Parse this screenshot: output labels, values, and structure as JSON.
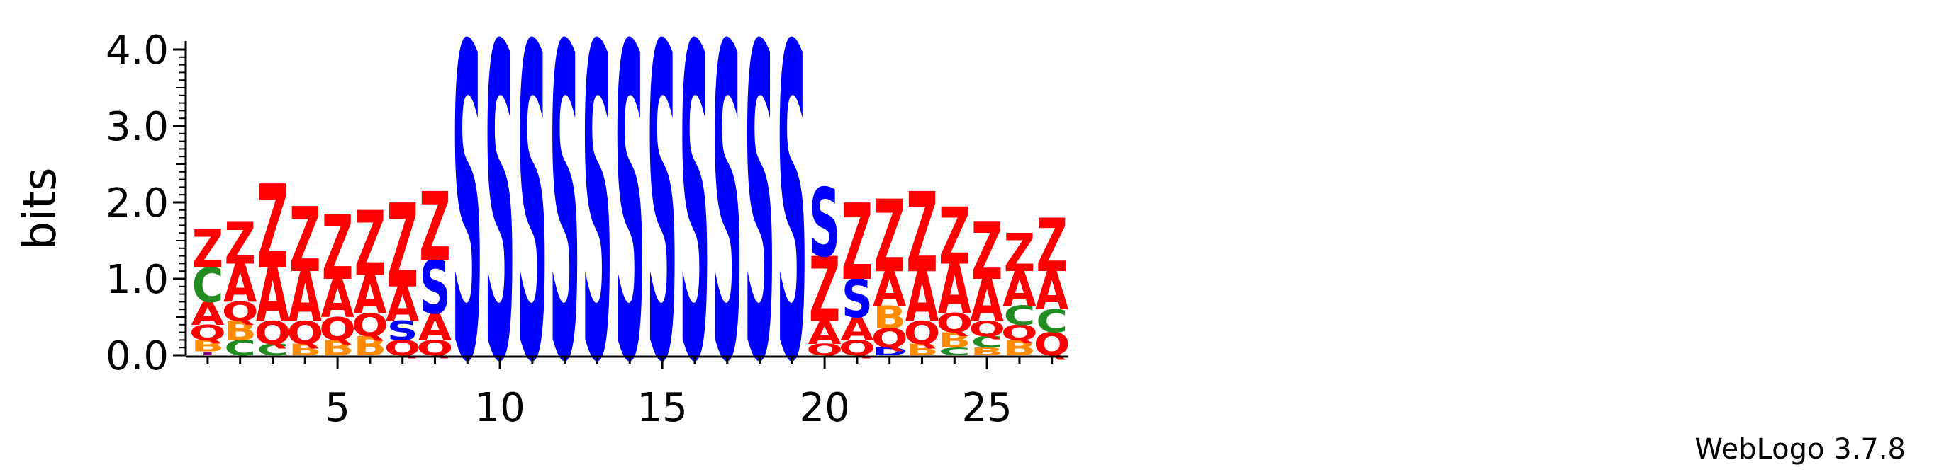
{
  "chart_data": {
    "type": "sequence-logo",
    "ylabel": "bits",
    "ylim": [
      0,
      4.0
    ],
    "y_ticks": [
      "0.0",
      "1.0",
      "2.0",
      "3.0",
      "4.0"
    ],
    "x_ticks": [
      "5",
      "10",
      "15",
      "20",
      "25"
    ],
    "x_tick_values": [
      5,
      10,
      15,
      20,
      25
    ],
    "x_range": [
      1,
      27
    ],
    "credit": "WebLogo 3.7.8",
    "colors": {
      "Z": "#ff0000",
      "A": "#ff0000",
      "Q": "#ff0000",
      "S": "#0000ff",
      "C": "#228b22",
      "B": "#ff8c00",
      "I": "#800080",
      "D": "#0000ff"
    },
    "positions": [
      {
        "pos": 1,
        "stack": [
          [
            "I",
            0.05
          ],
          [
            "B",
            0.15
          ],
          [
            "Q",
            0.2
          ],
          [
            "A",
            0.3
          ],
          [
            "C",
            0.45
          ],
          [
            "Z",
            0.5
          ]
        ]
      },
      {
        "pos": 2,
        "stack": [
          [
            "C",
            0.2
          ],
          [
            "B",
            0.25
          ],
          [
            "Q",
            0.25
          ],
          [
            "A",
            0.5
          ],
          [
            "Z",
            0.55
          ]
        ]
      },
      {
        "pos": 3,
        "stack": [
          [
            "C",
            0.15
          ],
          [
            "Q",
            0.3
          ],
          [
            "A",
            0.7
          ],
          [
            "Z",
            1.1
          ]
        ]
      },
      {
        "pos": 4,
        "stack": [
          [
            "B",
            0.15
          ],
          [
            "Q",
            0.3
          ],
          [
            "A",
            0.65
          ],
          [
            "Z",
            0.85
          ]
        ]
      },
      {
        "pos": 5,
        "stack": [
          [
            "B",
            0.2
          ],
          [
            "Q",
            0.3
          ],
          [
            "A",
            0.5
          ],
          [
            "Z",
            0.85
          ]
        ]
      },
      {
        "pos": 6,
        "stack": [
          [
            "B",
            0.25
          ],
          [
            "Q",
            0.3
          ],
          [
            "A",
            0.5
          ],
          [
            "Z",
            0.85
          ]
        ]
      },
      {
        "pos": 7,
        "stack": [
          [
            "Q",
            0.2
          ],
          [
            "S",
            0.25
          ],
          [
            "A",
            0.45
          ],
          [
            "Z",
            1.1
          ]
        ]
      },
      {
        "pos": 8,
        "stack": [
          [
            "Q",
            0.2
          ],
          [
            "A",
            0.35
          ],
          [
            "S",
            0.7
          ],
          [
            "Z",
            0.9
          ]
        ]
      },
      {
        "pos": 9,
        "stack": [
          [
            "S",
            4.1
          ]
        ]
      },
      {
        "pos": 10,
        "stack": [
          [
            "S",
            4.1
          ]
        ]
      },
      {
        "pos": 11,
        "stack": [
          [
            "S",
            4.1
          ]
        ]
      },
      {
        "pos": 12,
        "stack": [
          [
            "S",
            4.1
          ]
        ]
      },
      {
        "pos": 13,
        "stack": [
          [
            "S",
            4.1
          ]
        ]
      },
      {
        "pos": 14,
        "stack": [
          [
            "S",
            4.1
          ]
        ]
      },
      {
        "pos": 15,
        "stack": [
          [
            "S",
            4.1
          ]
        ]
      },
      {
        "pos": 16,
        "stack": [
          [
            "S",
            4.1
          ]
        ]
      },
      {
        "pos": 17,
        "stack": [
          [
            "S",
            4.1
          ]
        ]
      },
      {
        "pos": 18,
        "stack": [
          [
            "S",
            4.1
          ]
        ]
      },
      {
        "pos": 19,
        "stack": [
          [
            "S",
            4.1
          ]
        ]
      },
      {
        "pos": 20,
        "stack": [
          [
            "Q",
            0.15
          ],
          [
            "A",
            0.3
          ],
          [
            "Z",
            0.85
          ],
          [
            "S",
            0.9
          ]
        ]
      },
      {
        "pos": 21,
        "stack": [
          [
            "Q",
            0.2
          ],
          [
            "A",
            0.3
          ],
          [
            "S",
            0.5
          ],
          [
            "Z",
            1.0
          ]
        ]
      },
      {
        "pos": 22,
        "stack": [
          [
            "D",
            0.1
          ],
          [
            "Q",
            0.25
          ],
          [
            "B",
            0.3
          ],
          [
            "A",
            0.45
          ],
          [
            "Z",
            0.95
          ]
        ]
      },
      {
        "pos": 23,
        "stack": [
          [
            "B",
            0.15
          ],
          [
            "Q",
            0.3
          ],
          [
            "A",
            0.65
          ],
          [
            "Z",
            1.05
          ]
        ]
      },
      {
        "pos": 24,
        "stack": [
          [
            "C",
            0.1
          ],
          [
            "B",
            0.2
          ],
          [
            "Q",
            0.25
          ],
          [
            "A",
            0.65
          ],
          [
            "Z",
            0.75
          ]
        ]
      },
      {
        "pos": 25,
        "stack": [
          [
            "B",
            0.1
          ],
          [
            "C",
            0.15
          ],
          [
            "Q",
            0.2
          ],
          [
            "A",
            0.55
          ],
          [
            "Z",
            0.75
          ]
        ]
      },
      {
        "pos": 26,
        "stack": [
          [
            "B",
            0.2
          ],
          [
            "Q",
            0.2
          ],
          [
            "C",
            0.25
          ],
          [
            "A",
            0.45
          ],
          [
            "Z",
            0.5
          ]
        ]
      },
      {
        "pos": 27,
        "stack": [
          [
            "Q",
            0.3
          ],
          [
            "C",
            0.3
          ],
          [
            "A",
            0.5
          ],
          [
            "Z",
            0.7
          ]
        ]
      }
    ]
  }
}
